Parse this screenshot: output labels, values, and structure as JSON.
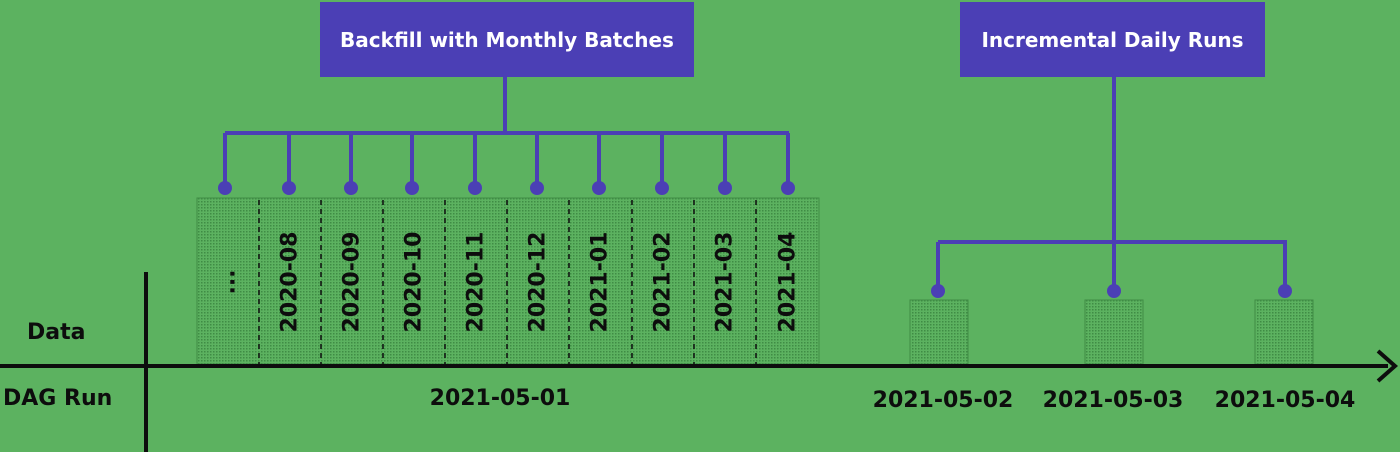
{
  "callouts": {
    "backfill": "Backfill with Monthly Batches",
    "incremental": "Incremental Daily Runs"
  },
  "axis": {
    "data_label": "Data",
    "dagrun_label": "DAG Run"
  },
  "backfill": {
    "ellipsis": "...",
    "batches": [
      "2020-08",
      "2020-09",
      "2020-10",
      "2020-11",
      "2020-12",
      "2021-01",
      "2021-02",
      "2021-03",
      "2021-04"
    ],
    "run_date": "2021-05-01"
  },
  "daily_runs": [
    "2021-05-02",
    "2021-05-03",
    "2021-05-04"
  ],
  "colors": {
    "background": "#5cb260",
    "callout": "#4b3fb5",
    "connector": "#4b3fb5",
    "axis": "#0d0d0d"
  }
}
